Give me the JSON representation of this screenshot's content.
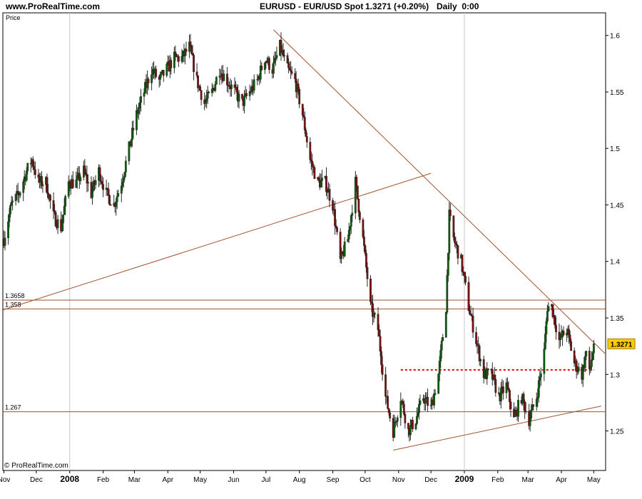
{
  "header": {
    "site": "www.ProRealTime.com",
    "instrument": "EURUSD - EUR/USD Spot",
    "price_change": "1.3271 (+0.20%)",
    "period": "Daily  0:00"
  },
  "footer_copyright": "© ProRealTime.com",
  "chart_data": {
    "type": "candlestick",
    "y_axis_caption": "Price",
    "ylim": [
      1.215,
      1.62
    ],
    "y_ticks": [
      1.25,
      1.3,
      1.35,
      1.4,
      1.45,
      1.5,
      1.55,
      1.6
    ],
    "y_tick_labels": [
      "1.25",
      "1.3",
      "1.35",
      "1.4",
      "1.45",
      "1.5",
      "1.55",
      "1.6"
    ],
    "x_range": [
      "2007-10-31",
      "2009-05-12"
    ],
    "x_ticks": [
      {
        "date": "2007-11-01",
        "label": "Nov",
        "major": false
      },
      {
        "date": "2007-12-01",
        "label": "Dec",
        "major": false
      },
      {
        "date": "2008-01-01",
        "label": "2008",
        "major": true
      },
      {
        "date": "2008-02-01",
        "label": "Feb",
        "major": false
      },
      {
        "date": "2008-03-01",
        "label": "Mar",
        "major": false
      },
      {
        "date": "2008-04-01",
        "label": "Apr",
        "major": false
      },
      {
        "date": "2008-05-01",
        "label": "May",
        "major": false
      },
      {
        "date": "2008-06-01",
        "label": "Jun",
        "major": false
      },
      {
        "date": "2008-07-01",
        "label": "Jul",
        "major": false
      },
      {
        "date": "2008-08-01",
        "label": "Aug",
        "major": false
      },
      {
        "date": "2008-09-01",
        "label": "Sep",
        "major": false
      },
      {
        "date": "2008-10-01",
        "label": "Oct",
        "major": false
      },
      {
        "date": "2008-11-01",
        "label": "Nov",
        "major": false
      },
      {
        "date": "2008-12-01",
        "label": "Dec",
        "major": false
      },
      {
        "date": "2009-01-01",
        "label": "2009",
        "major": true
      },
      {
        "date": "2009-02-01",
        "label": "Feb",
        "major": false
      },
      {
        "date": "2009-03-01",
        "label": "Mar",
        "major": false
      },
      {
        "date": "2009-04-01",
        "label": "Apr",
        "major": false
      },
      {
        "date": "2009-05-01",
        "label": "May",
        "major": false
      }
    ],
    "current_price": 1.3271,
    "current_price_label": "1.3271",
    "horizontal_levels": [
      {
        "value": 1.3658,
        "label": "1.3658"
      },
      {
        "value": 1.358,
        "label": "1.358"
      },
      {
        "value": 1.267,
        "label": "1.267"
      }
    ],
    "dotted_level": {
      "value": 1.304,
      "from": "2008-11-03",
      "to": "2009-05-01",
      "color": "#dd0000"
    },
    "trendlines": [
      {
        "from": {
          "date": "2007-10-31",
          "value": 1.357
        },
        "to": {
          "date": "2008-12-01",
          "value": 1.478
        }
      },
      {
        "from": {
          "date": "2008-07-08",
          "value": 1.605
        },
        "to": {
          "date": "2009-05-12",
          "value": 1.318
        }
      },
      {
        "from": {
          "date": "2008-10-27",
          "value": 1.233
        },
        "to": {
          "date": "2009-05-08",
          "value": 1.272
        }
      }
    ],
    "price_path": [
      [
        "2007-11-01",
        1.42
      ],
      [
        "2007-11-08",
        1.45
      ],
      [
        "2007-11-15",
        1.46
      ],
      [
        "2007-11-22",
        1.48
      ],
      [
        "2007-11-27",
        1.49
      ],
      [
        "2007-12-03",
        1.47
      ],
      [
        "2007-12-10",
        1.47
      ],
      [
        "2007-12-17",
        1.44
      ],
      [
        "2007-12-24",
        1.43
      ],
      [
        "2007-12-31",
        1.47
      ],
      [
        "2008-01-07",
        1.47
      ],
      [
        "2008-01-14",
        1.48
      ],
      [
        "2008-01-21",
        1.46
      ],
      [
        "2008-01-28",
        1.48
      ],
      [
        "2008-02-04",
        1.46
      ],
      [
        "2008-02-11",
        1.45
      ],
      [
        "2008-02-18",
        1.47
      ],
      [
        "2008-02-25",
        1.5
      ],
      [
        "2008-03-03",
        1.53
      ],
      [
        "2008-03-10",
        1.55
      ],
      [
        "2008-03-17",
        1.57
      ],
      [
        "2008-03-24",
        1.56
      ],
      [
        "2008-03-31",
        1.57
      ],
      [
        "2008-04-07",
        1.58
      ],
      [
        "2008-04-14",
        1.58
      ],
      [
        "2008-04-21",
        1.59
      ],
      [
        "2008-04-28",
        1.56
      ],
      [
        "2008-05-05",
        1.54
      ],
      [
        "2008-05-12",
        1.55
      ],
      [
        "2008-05-19",
        1.57
      ],
      [
        "2008-05-26",
        1.56
      ],
      [
        "2008-06-02",
        1.55
      ],
      [
        "2008-06-09",
        1.54
      ],
      [
        "2008-06-16",
        1.55
      ],
      [
        "2008-06-23",
        1.56
      ],
      [
        "2008-06-30",
        1.58
      ],
      [
        "2008-07-07",
        1.57
      ],
      [
        "2008-07-14",
        1.59
      ],
      [
        "2008-07-21",
        1.57
      ],
      [
        "2008-07-28",
        1.56
      ],
      [
        "2008-08-04",
        1.53
      ],
      [
        "2008-08-11",
        1.49
      ],
      [
        "2008-08-18",
        1.47
      ],
      [
        "2008-08-25",
        1.47
      ],
      [
        "2008-09-01",
        1.45
      ],
      [
        "2008-09-08",
        1.4
      ],
      [
        "2008-09-15",
        1.42
      ],
      [
        "2008-09-22",
        1.47
      ],
      [
        "2008-09-29",
        1.42
      ],
      [
        "2008-10-06",
        1.36
      ],
      [
        "2008-10-13",
        1.34
      ],
      [
        "2008-10-20",
        1.28
      ],
      [
        "2008-10-27",
        1.25
      ],
      [
        "2008-11-03",
        1.28
      ],
      [
        "2008-11-10",
        1.25
      ],
      [
        "2008-11-17",
        1.26
      ],
      [
        "2008-11-24",
        1.28
      ],
      [
        "2008-12-01",
        1.27
      ],
      [
        "2008-12-08",
        1.3
      ],
      [
        "2008-12-15",
        1.36
      ],
      [
        "2008-12-18",
        1.44
      ],
      [
        "2008-12-22",
        1.42
      ],
      [
        "2008-12-29",
        1.4
      ],
      [
        "2009-01-05",
        1.36
      ],
      [
        "2009-01-12",
        1.33
      ],
      [
        "2009-01-19",
        1.3
      ],
      [
        "2009-01-26",
        1.3
      ],
      [
        "2009-02-02",
        1.28
      ],
      [
        "2009-02-09",
        1.29
      ],
      [
        "2009-02-16",
        1.26
      ],
      [
        "2009-02-23",
        1.28
      ],
      [
        "2009-03-02",
        1.26
      ],
      [
        "2009-03-09",
        1.28
      ],
      [
        "2009-03-16",
        1.32
      ],
      [
        "2009-03-19",
        1.36
      ],
      [
        "2009-03-23",
        1.36
      ],
      [
        "2009-03-30",
        1.33
      ],
      [
        "2009-04-06",
        1.34
      ],
      [
        "2009-04-13",
        1.31
      ],
      [
        "2009-04-20",
        1.3
      ],
      [
        "2009-04-24",
        1.32
      ],
      [
        "2009-04-27",
        1.3
      ],
      [
        "2009-05-01",
        1.3271
      ]
    ]
  },
  "colors": {
    "bull_candle": "#0b5e0b",
    "bear_candle": "#7a1010",
    "wick": "#2a2a2a",
    "trendline": "#a0522d",
    "level_line": "#a0522d",
    "grid": "#c8c8c8",
    "price_badge_bg": "#ffcc00",
    "price_badge_border": "#aa7700"
  }
}
